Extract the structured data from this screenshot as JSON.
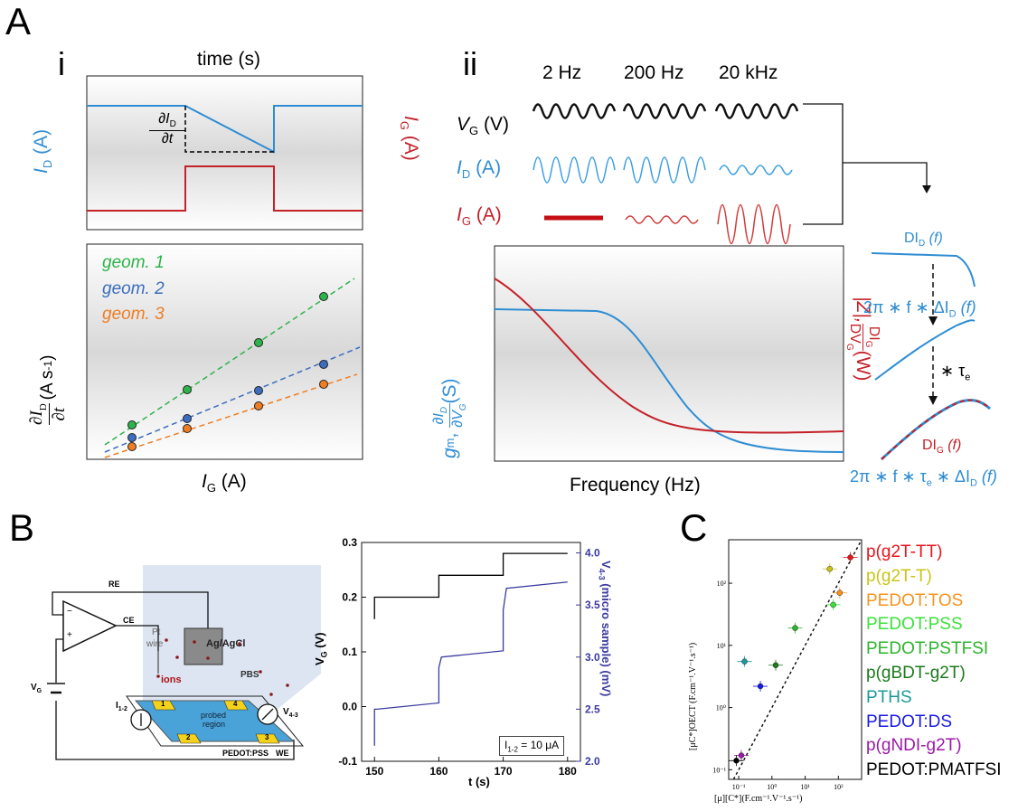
{
  "panel_a": {
    "label": "A",
    "sub_i": "i",
    "sub_ii": "ii",
    "time_label": "time (s)",
    "id_axis": "I",
    "id_axis_sub": "D",
    "id_axis_unit": " (A)",
    "ig_axis": "I",
    "ig_axis_sub": "G",
    "ig_axis_unit": " (A)",
    "deriv_num": "∂I",
    "deriv_num_sub": "D",
    "deriv_den": "∂t",
    "slope_ylabel_unit": " (A s",
    "slope_ylabel_exp": "-1",
    "slope_ylabel_close": ")",
    "slope_xlabel": "I",
    "slope_xlabel_sub": "G",
    "slope_xlabel_unit": " (A)",
    "geoms": [
      "geom. 1",
      "geom. 2",
      "geom. 3"
    ],
    "freqs": [
      "2 Hz",
      "200 Hz",
      "20 kHz"
    ],
    "row_vg": "V",
    "row_vg_sub": "G",
    "row_vg_unit": " (V)",
    "row_id": "I",
    "row_id_sub": "D",
    "row_id_unit": " (A)",
    "row_ig": "I",
    "row_ig_sub": "G",
    "row_ig_unit": " (A)",
    "freq_xlabel": "Frequency (Hz)",
    "gm_label": "g",
    "gm_sub": "m",
    "gm_eq_num": "∂I",
    "gm_eq_num_sub": "D",
    "gm_eq_den": "∂V",
    "gm_eq_den_sub": "G",
    "gm_unit": " (S)",
    "z_label": "|Z|, ",
    "z_num": "DI",
    "z_num_sub": "G",
    "z_den": "DV",
    "z_den_sub": "G",
    "z_unit": " (W)",
    "dId": "DI",
    "dId_sub": "D",
    "dId_arg": " (f)",
    "eq1": "2π ∗ f ∗ ΔI",
    "eq1_sub": "D",
    "eq1_arg": " (f)",
    "tau_op": "∗ τ",
    "tau_sub": "e",
    "dIg": "DI",
    "dIg_sub": "G",
    "dIg_arg": " (f)",
    "eq2": "2π ∗ f ∗ τ",
    "eq2_sub": "e",
    "eq2_mid": " ∗ ΔI",
    "eq2_sub2": "D",
    "eq2_arg": " (f)"
  },
  "panel_b": {
    "label": "B",
    "re": "RE",
    "ce": "CE",
    "vg": "V",
    "vg_sub": "G",
    "pt": "Pt",
    "wire": "wire",
    "agcl": "Ag/AgCl",
    "ions": "ions",
    "pbs": "PBS",
    "i12": "I",
    "i12_sub": "1-2",
    "v43": "V",
    "v43_sub": "4-3",
    "probed": "probed",
    "region": "region",
    "pedot": "PEDOT:PSS",
    "we": "WE",
    "pads": [
      "1",
      "4",
      "2",
      "3"
    ],
    "minus": "−",
    "plus": "+"
  },
  "panel_c": {
    "label": "C",
    "ylabel": "[μC*]OECT (F.cm⁻¹.V⁻¹.s⁻¹)",
    "xlabel": "[μ][C*](F.cm⁻¹.V⁻¹.s⁻¹)",
    "legend": [
      {
        "name": "p(g2T-TT)",
        "color": "#e8141b"
      },
      {
        "name": "p(g2T-T)",
        "color": "#c9c416"
      },
      {
        "name": "PEDOT:TOS",
        "color": "#f7941d"
      },
      {
        "name": "PEDOT:PSS",
        "color": "#3ae23a"
      },
      {
        "name": "PEDOT:PSTFSI",
        "color": "#2cb52c"
      },
      {
        "name": "p(gBDT-g2T)",
        "color": "#1c7a1c"
      },
      {
        "name": "PTHS",
        "color": "#1a9a9a"
      },
      {
        "name": "PEDOT:DS",
        "color": "#1a1ae6"
      },
      {
        "name": "p(gNDI-g2T)",
        "color": "#9a1aa6"
      },
      {
        "name": "PEDOT:PMATFSI",
        "color": "#000000"
      }
    ]
  },
  "chart_data": [
    {
      "type": "line",
      "panel": "B",
      "xlabel": "t (s)",
      "ylabel": "V",
      "ylabel_sub": "G",
      "ylabel_unit": " (V)",
      "y2label": "V",
      "y2label_sub": "4-3",
      "y2label_unit": " (micro sample) (mV)",
      "xlim": [
        148,
        182
      ],
      "ylim": [
        -0.1,
        0.3
      ],
      "y2lim": [
        2.0,
        4.1
      ],
      "xticks": [
        150,
        160,
        170,
        180
      ],
      "yticks": [
        "-0.1",
        "0.0",
        "0.1",
        "0.2",
        "0.3"
      ],
      "y2ticks": [
        "2.0",
        "2.5",
        "3.0",
        "3.5",
        "4.0"
      ],
      "legend_text": "I",
      "legend_sub": "1-2",
      "legend_val": " = 10 μA",
      "series": [
        {
          "color": "#000000",
          "x": [
            150,
            150,
            160,
            160,
            170,
            170,
            180
          ],
          "y": [
            0.16,
            0.2,
            0.2,
            0.24,
            0.24,
            0.28,
            0.28
          ]
        },
        {
          "color": "#3a3aa0",
          "x": [
            150,
            150,
            150.4,
            160,
            160,
            160.4,
            170,
            170,
            170.5,
            180
          ],
          "y2": [
            2.15,
            2.5,
            2.5,
            2.56,
            2.9,
            3.0,
            3.06,
            3.45,
            3.66,
            3.72
          ]
        }
      ]
    },
    {
      "type": "scatter",
      "panel": "C",
      "log_x": true,
      "log_y": true,
      "xlim": [
        0.05,
        500
      ],
      "ylim": [
        0.07,
        500
      ],
      "xticks": [
        "10⁻¹",
        "10⁰",
        "10¹",
        "10²"
      ],
      "yticks": [
        "10⁻¹",
        "10⁰",
        "10¹",
        "10²"
      ],
      "points": [
        {
          "name": "p(g2T-TT)",
          "x": 230,
          "y": 260
        },
        {
          "name": "p(g2T-T)",
          "x": 55,
          "y": 170
        },
        {
          "name": "PEDOT:TOS",
          "x": 110,
          "y": 70
        },
        {
          "name": "PEDOT:PSS",
          "x": 70,
          "y": 45
        },
        {
          "name": "PEDOT:PSTFSI",
          "x": 5,
          "y": 19
        },
        {
          "name": "p(gBDT-g2T)",
          "x": 1.3,
          "y": 4.8
        },
        {
          "name": "PTHS",
          "x": 0.15,
          "y": 5.5
        },
        {
          "name": "PEDOT:DS",
          "x": 0.45,
          "y": 2.2
        },
        {
          "name": "p(gNDI-g2T)",
          "x": 0.12,
          "y": 0.17
        },
        {
          "name": "PEDOT:PMATFSI",
          "x": 0.085,
          "y": 0.14
        }
      ]
    }
  ]
}
